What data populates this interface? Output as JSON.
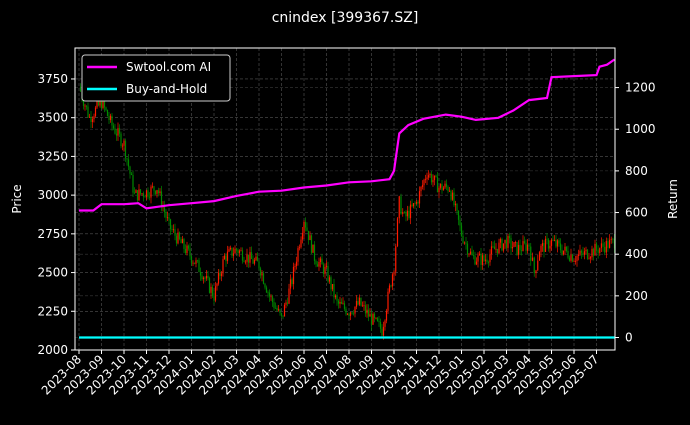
{
  "chart_data": {
    "type": "line",
    "title": "cnindex [399367.SZ]",
    "ylabel": "Price",
    "ylabel_right": "Return",
    "ylim": [
      2000,
      3950
    ],
    "ylim_right": [
      -60,
      1390
    ],
    "yticks": [
      2000,
      2250,
      2500,
      2750,
      3000,
      3250,
      3500,
      3750
    ],
    "yticks_right": [
      0,
      200,
      400,
      600,
      800,
      1000,
      1200
    ],
    "xticks": [
      "2023-08",
      "2023-09",
      "2023-10",
      "2023-11",
      "2023-12",
      "2024-01",
      "2024-02",
      "2024-03",
      "2024-04",
      "2024-05",
      "2024-06",
      "2024-07",
      "2024-08",
      "2024-09",
      "2024-10",
      "2024-11",
      "2024-12",
      "2025-01",
      "2025-02",
      "2025-03",
      "2025-04",
      "2025-05",
      "2025-06",
      "2025-07"
    ],
    "grid": true,
    "legend_placement": "top-left",
    "colors": {
      "background": "#000000",
      "up": "#ff1a00",
      "down": "#008a00",
      "strategy": "#ff00ff",
      "buy_hold": "#00ffff"
    },
    "price_candles": [
      [
        "2023-08-01",
        3700
      ],
      [
        "2023-08-15",
        3500
      ],
      [
        "2023-09-01",
        3600
      ],
      [
        "2023-09-15",
        3450
      ],
      [
        "2023-10-01",
        3330
      ],
      [
        "2023-10-15",
        3000
      ],
      [
        "2023-11-01",
        3020
      ],
      [
        "2023-11-15",
        3050
      ],
      [
        "2023-12-01",
        2800
      ],
      [
        "2023-12-15",
        2700
      ],
      [
        "2024-01-01",
        2600
      ],
      [
        "2024-01-15",
        2500
      ],
      [
        "2024-02-01",
        2350
      ],
      [
        "2024-02-15",
        2600
      ],
      [
        "2024-03-01",
        2650
      ],
      [
        "2024-03-15",
        2600
      ],
      [
        "2024-04-01",
        2550
      ],
      [
        "2024-04-15",
        2350
      ],
      [
        "2024-05-01",
        2200
      ],
      [
        "2024-05-15",
        2450
      ],
      [
        "2024-06-01",
        2850
      ],
      [
        "2024-06-15",
        2600
      ],
      [
        "2024-07-01",
        2500
      ],
      [
        "2024-07-15",
        2300
      ],
      [
        "2024-08-01",
        2250
      ],
      [
        "2024-08-15",
        2300
      ],
      [
        "2024-09-01",
        2200
      ],
      [
        "2024-09-15",
        2130
      ],
      [
        "2024-10-01",
        2550
      ],
      [
        "2024-10-08",
        2950
      ],
      [
        "2024-10-15",
        2850
      ],
      [
        "2024-11-01",
        2950
      ],
      [
        "2024-11-15",
        3150
      ],
      [
        "2024-12-01",
        3050
      ],
      [
        "2024-12-15",
        3050
      ],
      [
        "2025-01-01",
        2750
      ],
      [
        "2025-01-15",
        2600
      ],
      [
        "2025-02-01",
        2580
      ],
      [
        "2025-02-15",
        2650
      ],
      [
        "2025-03-01",
        2700
      ],
      [
        "2025-03-15",
        2650
      ],
      [
        "2025-04-01",
        2680
      ],
      [
        "2025-04-08",
        2500
      ],
      [
        "2025-04-15",
        2650
      ],
      [
        "2025-05-01",
        2700
      ],
      [
        "2025-05-15",
        2650
      ],
      [
        "2025-06-01",
        2600
      ],
      [
        "2025-06-15",
        2620
      ],
      [
        "2025-07-01",
        2650
      ],
      [
        "2025-07-25",
        2700
      ]
    ],
    "series": [
      {
        "name": "Swtool.com AI",
        "axis": "right",
        "points": [
          [
            "2023-08-01",
            610
          ],
          [
            "2023-08-20",
            610
          ],
          [
            "2023-09-01",
            640
          ],
          [
            "2023-10-01",
            640
          ],
          [
            "2023-10-20",
            645
          ],
          [
            "2023-11-01",
            620
          ],
          [
            "2023-12-01",
            635
          ],
          [
            "2024-01-01",
            645
          ],
          [
            "2024-02-01",
            655
          ],
          [
            "2024-03-01",
            680
          ],
          [
            "2024-04-01",
            700
          ],
          [
            "2024-05-01",
            705
          ],
          [
            "2024-06-01",
            720
          ],
          [
            "2024-07-01",
            730
          ],
          [
            "2024-08-01",
            745
          ],
          [
            "2024-09-01",
            750
          ],
          [
            "2024-09-25",
            760
          ],
          [
            "2024-10-01",
            800
          ],
          [
            "2024-10-08",
            980
          ],
          [
            "2024-10-20",
            1020
          ],
          [
            "2024-11-10",
            1050
          ],
          [
            "2024-12-10",
            1070
          ],
          [
            "2025-01-01",
            1060
          ],
          [
            "2025-01-20",
            1045
          ],
          [
            "2025-02-20",
            1055
          ],
          [
            "2025-03-10",
            1090
          ],
          [
            "2025-04-01",
            1140
          ],
          [
            "2025-04-25",
            1150
          ],
          [
            "2025-05-01",
            1250
          ],
          [
            "2025-06-01",
            1255
          ],
          [
            "2025-07-01",
            1260
          ],
          [
            "2025-07-05",
            1300
          ],
          [
            "2025-07-15",
            1310
          ],
          [
            "2025-07-25",
            1335
          ]
        ]
      },
      {
        "name": "Buy-and-Hold",
        "axis": "right",
        "points": [
          [
            "2023-08-01",
            0
          ],
          [
            "2025-07-25",
            0
          ]
        ]
      }
    ]
  }
}
